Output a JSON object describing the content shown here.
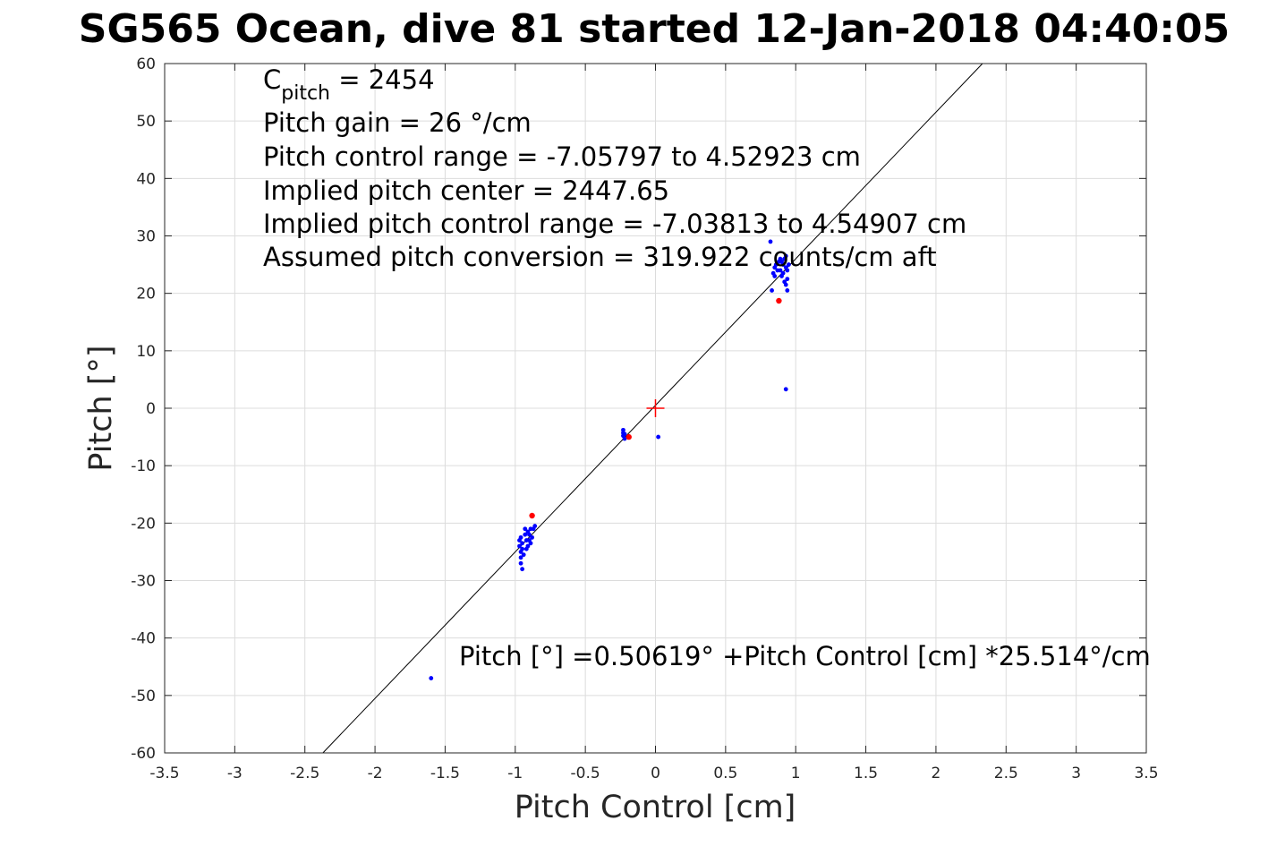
{
  "chart_data": {
    "type": "scatter",
    "title": "SG565 Ocean, dive 81 started 12-Jan-2018 04:40:05",
    "xlabel": "Pitch Control [cm]",
    "ylabel": "Pitch [°]",
    "xlim": [
      -3.5,
      3.5
    ],
    "ylim": [
      -60,
      60
    ],
    "xticks": [
      "-3.5",
      "-3",
      "-2.5",
      "-2",
      "-1.5",
      "-1",
      "-0.5",
      "0",
      "0.5",
      "1",
      "1.5",
      "2",
      "2.5",
      "3",
      "3.5"
    ],
    "xtick_values": [
      -3.5,
      -3,
      -2.5,
      -2,
      -1.5,
      -1,
      -0.5,
      0,
      0.5,
      1,
      1.5,
      2,
      2.5,
      3,
      3.5
    ],
    "yticks": [
      "60",
      "50",
      "40",
      "30",
      "20",
      "10",
      "0",
      "-10",
      "-20",
      "-30",
      "-40",
      "-50",
      "-60"
    ],
    "ytick_values": [
      60,
      50,
      40,
      30,
      20,
      10,
      0,
      -10,
      -20,
      -30,
      -40,
      -50,
      -60
    ],
    "grid": true,
    "fit_line": {
      "intercept": 0.50619,
      "slope": 25.514
    },
    "annotations": {
      "cpitch_base": "C",
      "cpitch_sub": "pitch",
      "cpitch_value": " = 2454",
      "pitch_gain": "Pitch gain = 26 °/cm",
      "control_range": "Pitch control range = -7.05797 to 4.52923 cm",
      "implied_center": "Implied pitch center = 2447.65",
      "implied_range": "Implied pitch control range = -7.03813 to 4.54907 cm",
      "conversion": "Assumed pitch conversion = 319.922 counts/cm aft",
      "fit_equation": "Pitch [°] =0.50619° +Pitch Control [cm] *25.514°/cm"
    },
    "center_marker": {
      "x": 0,
      "y": 0,
      "color": "#ff0000"
    },
    "series": [
      {
        "color": "#0000ff",
        "points": [
          [
            -0.97,
            -23
          ],
          [
            -0.97,
            -24
          ],
          [
            -0.96,
            -25
          ],
          [
            -0.96,
            -26
          ],
          [
            -0.96,
            -27
          ],
          [
            -0.95,
            -28
          ],
          [
            -0.96,
            -22.5
          ],
          [
            -0.95,
            -24.5
          ],
          [
            -0.94,
            -25.5
          ],
          [
            -0.95,
            -23.5
          ],
          [
            -0.93,
            -22
          ],
          [
            -0.92,
            -23
          ],
          [
            -0.91,
            -21.5
          ],
          [
            -0.9,
            -22
          ],
          [
            -0.89,
            -21
          ],
          [
            -0.9,
            -23
          ],
          [
            -0.88,
            -22.5
          ],
          [
            -0.91,
            -24
          ],
          [
            -0.92,
            -24.5
          ],
          [
            -0.89,
            -23.5
          ],
          [
            -0.93,
            -21
          ],
          [
            -0.87,
            -21
          ],
          [
            -0.86,
            -20.5
          ],
          [
            -0.23,
            -3.8
          ],
          [
            -0.23,
            -4.3
          ],
          [
            -0.23,
            -4.8
          ],
          [
            -0.22,
            -5.3
          ],
          [
            -0.22,
            -4.5
          ],
          [
            0.02,
            -5
          ],
          [
            -1.6,
            -47
          ],
          [
            0.82,
            29
          ],
          [
            0.83,
            20.5
          ],
          [
            0.84,
            23.5
          ],
          [
            0.85,
            24.5
          ],
          [
            0.86,
            25
          ],
          [
            0.85,
            23
          ],
          [
            0.87,
            24
          ],
          [
            0.88,
            25.5
          ],
          [
            0.89,
            24
          ],
          [
            0.9,
            23
          ],
          [
            0.91,
            25
          ],
          [
            0.92,
            26
          ],
          [
            0.93,
            24.5
          ],
          [
            0.92,
            22
          ],
          [
            0.93,
            21.5
          ],
          [
            0.94,
            20.5
          ],
          [
            0.91,
            23.5
          ],
          [
            0.9,
            25.5
          ],
          [
            0.93,
            26.5
          ],
          [
            0.94,
            24
          ],
          [
            0.94,
            22.5
          ],
          [
            0.95,
            25
          ],
          [
            0.89,
            26
          ],
          [
            0.93,
            3.3
          ]
        ]
      },
      {
        "color": "#ff0000",
        "points": [
          [
            -0.88,
            -18.7
          ],
          [
            -0.19,
            -5
          ],
          [
            0.88,
            18.7
          ]
        ]
      }
    ]
  }
}
